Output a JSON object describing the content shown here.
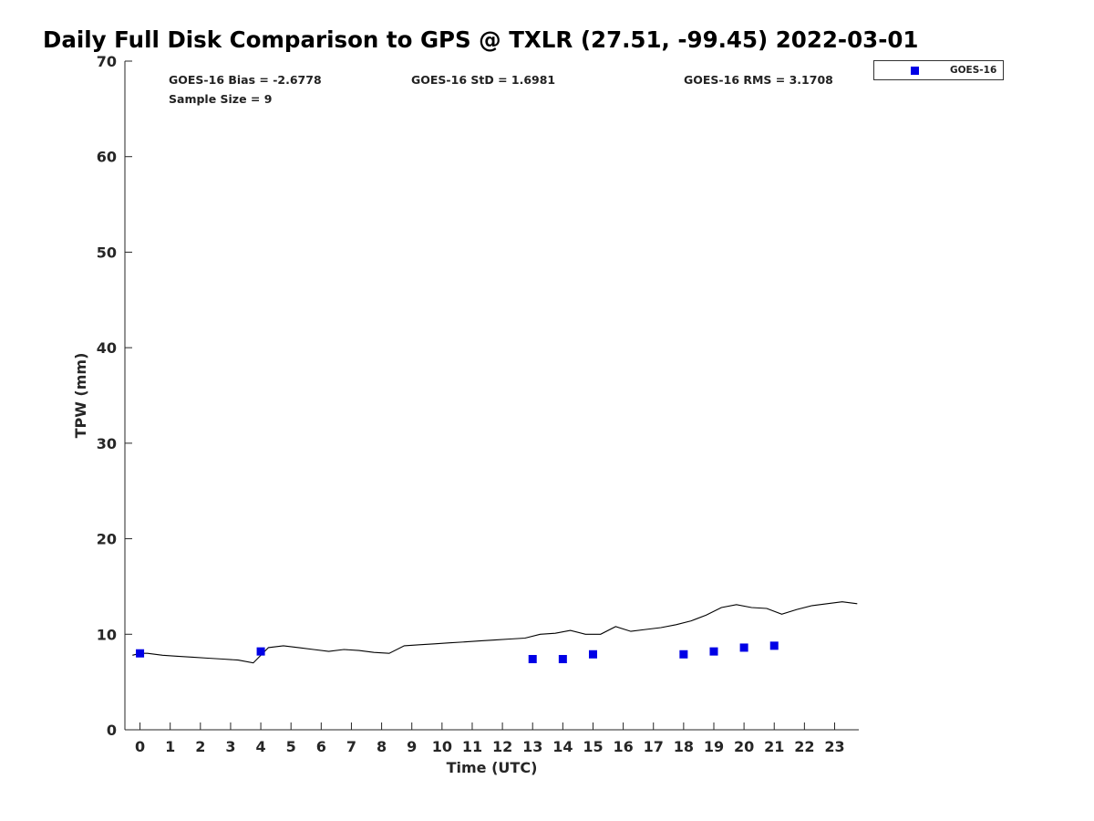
{
  "chart_data": {
    "type": "line",
    "title": "Daily Full Disk Comparison to GPS @ TXLR (27.51, -99.45) 2022-03-01",
    "xlabel": "Time (UTC)",
    "ylabel": "TPW (mm)",
    "xlim": [
      -0.5,
      23.8
    ],
    "ylim": [
      0,
      70
    ],
    "xticks": [
      "0",
      "1",
      "2",
      "3",
      "4",
      "5",
      "6",
      "7",
      "8",
      "9",
      "10",
      "11",
      "12",
      "13",
      "14",
      "15",
      "16",
      "17",
      "18",
      "19",
      "20",
      "21",
      "22",
      "23"
    ],
    "yticks": [
      "0",
      "10",
      "20",
      "30",
      "40",
      "50",
      "60",
      "70"
    ],
    "stats": {
      "bias": "GOES-16 Bias = -2.6778",
      "std": "GOES-16 StD = 1.6981",
      "rms": "GOES-16 RMS = 3.1708",
      "sample": "Sample Size = 9"
    },
    "legend": {
      "label": "GOES-16",
      "placement": "top-right, outside plot"
    },
    "series": [
      {
        "type": "line",
        "color": "#000000",
        "x": [
          -0.25,
          0.0,
          0.25,
          0.75,
          1.25,
          1.75,
          2.25,
          2.75,
          3.25,
          3.75,
          4.25,
          4.75,
          5.25,
          5.75,
          6.25,
          6.75,
          7.25,
          7.75,
          8.25,
          8.75,
          9.25,
          9.75,
          10.25,
          10.75,
          11.25,
          11.75,
          12.25,
          12.75,
          13.25,
          13.75,
          14.25,
          14.75,
          15.25,
          15.75,
          16.25,
          16.75,
          17.25,
          17.75,
          18.25,
          18.75,
          19.25,
          19.75,
          20.25,
          20.75,
          21.25,
          21.75,
          22.25,
          22.75,
          23.25,
          23.75
        ],
        "values": [
          7.8,
          8.0,
          8.0,
          7.8,
          7.7,
          7.6,
          7.5,
          7.4,
          7.3,
          7.0,
          8.6,
          8.8,
          8.6,
          8.4,
          8.2,
          8.4,
          8.3,
          8.1,
          8.0,
          8.8,
          8.9,
          9.0,
          9.1,
          9.2,
          9.3,
          9.4,
          9.5,
          9.6,
          10.0,
          10.1,
          10.4,
          10.0,
          10.0,
          10.8,
          10.3,
          10.5,
          10.7,
          11.0,
          11.4,
          12.0,
          12.8,
          13.1,
          12.8,
          12.7,
          12.1,
          12.6,
          13.0,
          13.2,
          13.4,
          13.2
        ]
      },
      {
        "name": "GOES-16",
        "type": "scatter",
        "marker": "square",
        "color": "#0000e6",
        "x": [
          0,
          4,
          13,
          14,
          15,
          18,
          19,
          20,
          21
        ],
        "values": [
          8.0,
          8.2,
          7.4,
          7.4,
          7.9,
          7.9,
          8.2,
          8.6,
          8.8
        ]
      }
    ]
  }
}
